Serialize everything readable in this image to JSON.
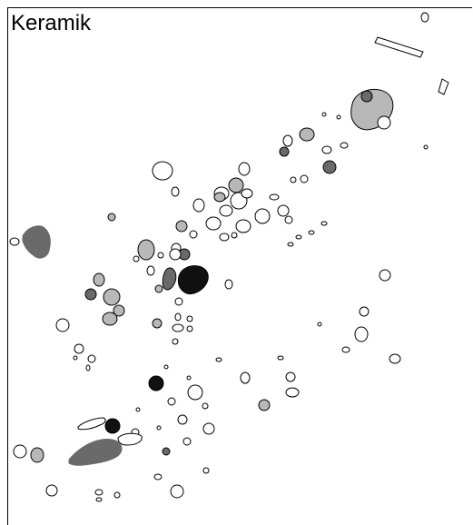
{
  "title": "Keramik",
  "legend_colors": {
    "white": "#ffffff",
    "light_grey": "#b8b8b8",
    "dark_grey": "#6a6a6a",
    "black": "#111111",
    "outline": "#000000"
  }
}
